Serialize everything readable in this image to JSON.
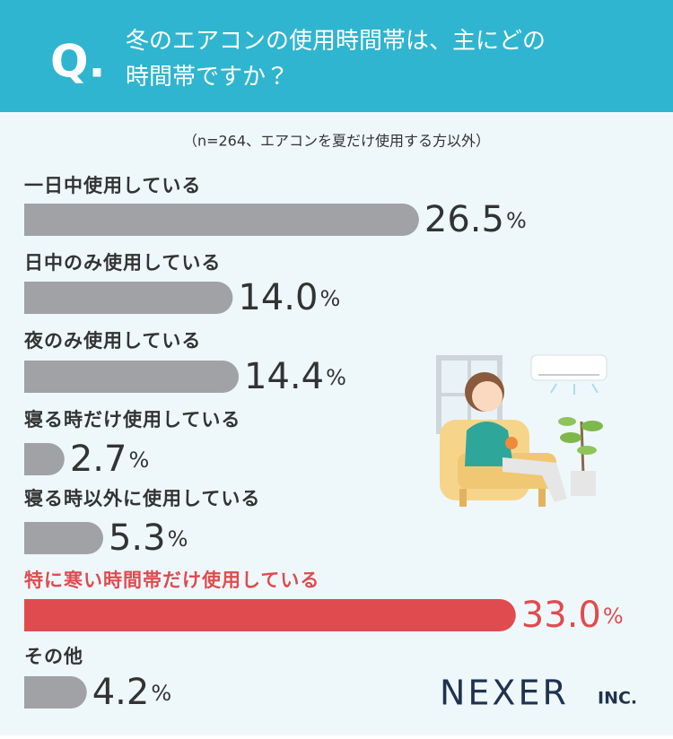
{
  "question_label": "Q.",
  "chart_data": {
    "type": "bar",
    "orientation": "horizontal",
    "title": "冬のエアコンの使用時間帯は、主にどの時間帯ですか？",
    "subtitle": "（n=264、エアコンを夏だけ使用する方以外）",
    "categories": [
      "一日中使用している",
      "日中のみ使用している",
      "夜のみ使用している",
      "寝る時だけ使用している",
      "寝る時以外に使用している",
      "特に寒い時間帯だけ使用している",
      "その他"
    ],
    "values": [
      26.5,
      14.0,
      14.4,
      2.7,
      5.3,
      33.0,
      4.2
    ],
    "value_labels": [
      "26.5%",
      "14.0%",
      "14.4%",
      "2.7%",
      "5.3%",
      "33.0%",
      "4.2%"
    ],
    "colors": [
      "#a1a2a6",
      "#a1a2a6",
      "#a1a2a6",
      "#a1a2a6",
      "#a1a2a6",
      "#e04b4f",
      "#a1a2a6"
    ],
    "label_colors": [
      "#333333",
      "#333333",
      "#333333",
      "#333333",
      "#333333",
      "#e04b4f",
      "#333333"
    ]
  },
  "branding": {
    "name": "NEXER",
    "suffix": "INC."
  }
}
